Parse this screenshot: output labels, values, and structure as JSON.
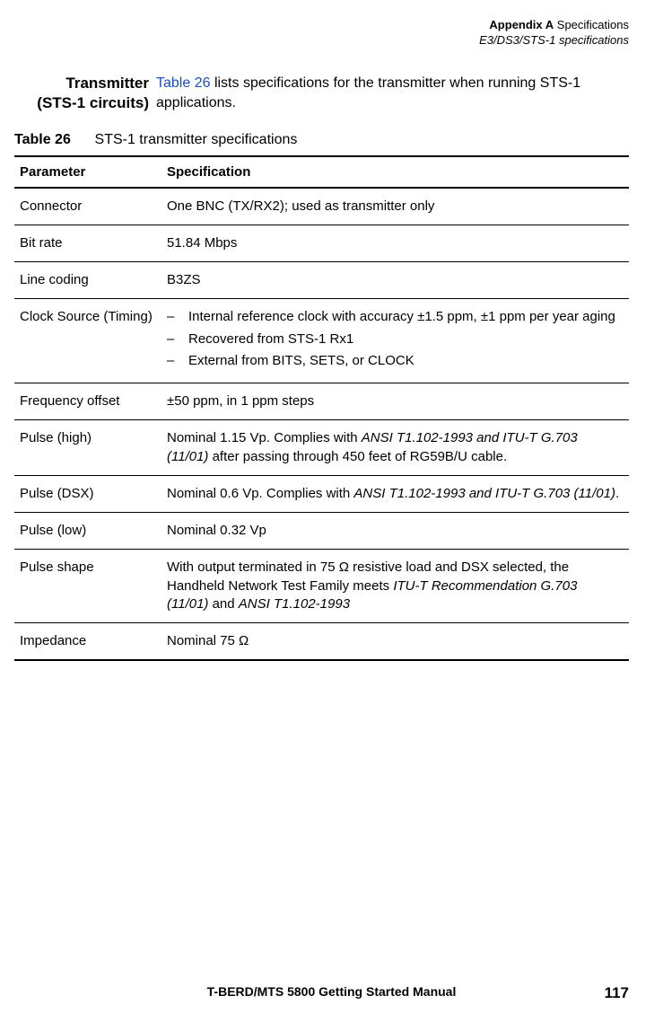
{
  "header": {
    "line1_bold": "Appendix A",
    "line1_rest": " Specifications",
    "line2": "E3/DS3/STS-1 specifications"
  },
  "section": {
    "label_line1": "Transmitter",
    "label_line2": "(STS-1 circuits)",
    "body_link": "Table 26",
    "body_rest": " lists specifications for the transmitter when running STS-1 applications."
  },
  "table_caption": {
    "bold": "Table 26",
    "rest": "STS-1 transmitter specifications"
  },
  "columns": {
    "param": "Parameter",
    "spec": "Specification"
  },
  "rows": [
    {
      "param": "Connector",
      "spec": "One BNC (TX/RX2); used as transmitter only"
    },
    {
      "param": "Bit rate",
      "spec": "51.84 Mbps"
    },
    {
      "param": "Line coding",
      "spec": "B3ZS"
    },
    {
      "param": "Clock Source (Timing)",
      "list": [
        "Internal reference clock with accuracy ±1.5 ppm, ±1 ppm per year aging",
        "Recovered from STS-1 Rx1",
        "External from BITS, SETS, or CLOCK"
      ]
    },
    {
      "param": "Frequency offset",
      "spec": "±50 ppm, in 1 ppm steps"
    },
    {
      "param": "Pulse (high)",
      "spec_pre": "Nominal 1.15 Vp. Complies with ",
      "spec_ital": "ANSI T1.102-1993 and ITU-T G.703 (11/01)",
      "spec_post": " after passing through 450 feet of RG59B/U cable."
    },
    {
      "param": "Pulse (DSX)",
      "spec_pre": "Nominal 0.6 Vp. Complies with ",
      "spec_ital": "ANSI T1.102-1993 and ITU-T G.703 (11/01)",
      "spec_post": "."
    },
    {
      "param": "Pulse (low)",
      "spec": "Nominal 0.32 Vp"
    },
    {
      "param": "Pulse shape",
      "spec_pre": "With output terminated in 75 Ω resistive load and DSX selected, the Handheld Network Test Family meets ",
      "spec_ital": "ITU-T Recommendation G.703 (11/01)",
      "spec_mid": " and ",
      "spec_ital2": "ANSI T1.102-1993",
      "spec_post": ""
    },
    {
      "param": "Impedance",
      "spec": "Nominal 75 Ω"
    }
  ],
  "footer": {
    "title": "T-BERD/MTS 5800 Getting Started Manual",
    "page": "117"
  }
}
